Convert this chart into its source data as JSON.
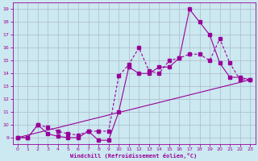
{
  "xlabel": "Windchill (Refroidissement éolien,°C)",
  "xlim": [
    -0.5,
    23.5
  ],
  "ylim": [
    8.5,
    19.5
  ],
  "yticks": [
    9,
    10,
    11,
    12,
    13,
    14,
    15,
    16,
    17,
    18,
    19
  ],
  "xticks": [
    0,
    1,
    2,
    3,
    4,
    5,
    6,
    7,
    8,
    9,
    10,
    11,
    12,
    13,
    14,
    15,
    16,
    17,
    18,
    19,
    20,
    21,
    22,
    23
  ],
  "background_color": "#cce8f0",
  "grid_color": "#aabbcc",
  "line_color": "#990099",
  "line1_x": [
    0,
    1,
    2,
    3,
    4,
    5,
    6,
    7,
    8,
    9,
    10,
    11,
    12,
    13,
    14,
    15,
    16,
    17,
    18,
    19,
    20,
    21,
    22,
    23
  ],
  "line1_y": [
    9.0,
    9.0,
    10.0,
    9.3,
    9.1,
    9.0,
    9.0,
    9.5,
    8.8,
    8.8,
    11.0,
    14.5,
    14.0,
    14.0,
    14.5,
    14.5,
    15.2,
    19.0,
    18.0,
    17.0,
    14.8,
    13.7,
    13.7,
    13.5
  ],
  "line2_x": [
    0,
    1,
    2,
    3,
    4,
    5,
    6,
    7,
    8,
    9,
    10,
    11,
    12,
    13,
    14,
    15,
    16,
    17,
    18,
    19,
    20,
    21,
    22,
    23
  ],
  "line2_y": [
    9.0,
    9.0,
    10.0,
    9.8,
    9.5,
    9.3,
    9.2,
    9.5,
    9.5,
    9.5,
    13.8,
    14.7,
    16.0,
    14.2,
    14.0,
    15.0,
    15.2,
    15.5,
    15.5,
    15.0,
    16.7,
    14.8,
    13.5,
    13.5
  ],
  "line3_x": [
    0,
    23
  ],
  "line3_y": [
    9.0,
    13.5
  ]
}
